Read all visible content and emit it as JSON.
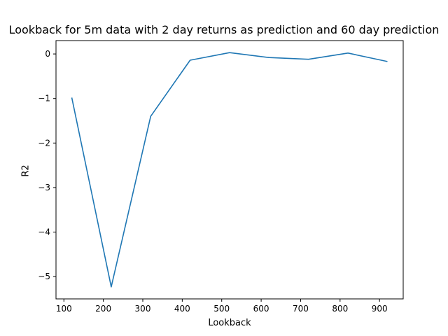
{
  "chart_data": {
    "type": "line",
    "title": "Lookback for 5m data with 2 day returns as prediction and 60 day prediction",
    "xlabel": "Lookback",
    "ylabel": "R2",
    "xlim": [
      80,
      960
    ],
    "ylim": [
      -5.5,
      0.3
    ],
    "xticks": [
      100,
      200,
      300,
      400,
      500,
      600,
      700,
      800,
      900
    ],
    "yticks": [
      0,
      -1,
      -2,
      -3,
      -4,
      -5
    ],
    "ytick_labels": [
      "0",
      "−1",
      "−2",
      "−3",
      "−4",
      "−5"
    ],
    "grid": false,
    "series": [
      {
        "color": "#1f77b4",
        "x": [
          120,
          220,
          320,
          420,
          520,
          620,
          720,
          820,
          920
        ],
        "y": [
          -0.98,
          -5.23,
          -1.4,
          -0.14,
          0.03,
          -0.08,
          -0.12,
          0.02,
          -0.17
        ]
      }
    ]
  }
}
